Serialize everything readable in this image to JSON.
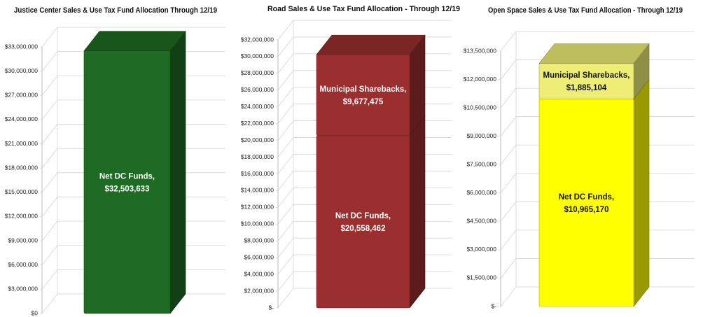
{
  "chart_data": [
    {
      "type": "bar",
      "title": "Justice Center Sales & Use Tax Fund Allocation Through 12/19",
      "series": [
        {
          "name": "Net DC Funds",
          "color": "#1e6b23",
          "values": [
            32503633
          ],
          "value_labels": [
            "Net DC Funds, $32,503,633"
          ]
        }
      ],
      "ylim": [
        0,
        33000000
      ],
      "yticks": [
        {
          "value": 0,
          "label": "$0"
        },
        {
          "value": 3000000,
          "label": "$3,000,000"
        },
        {
          "value": 6000000,
          "label": "$6,000,000"
        },
        {
          "value": 9000000,
          "label": "$9,000,000"
        },
        {
          "value": 12000000,
          "label": "$12,000,000"
        },
        {
          "value": 15000000,
          "label": "$15,000,000"
        },
        {
          "value": 18000000,
          "label": "$18,000,000"
        },
        {
          "value": 21000000,
          "label": "$21,000,000"
        },
        {
          "value": 24000000,
          "label": "$24,000,000"
        },
        {
          "value": 27000000,
          "label": "$27,000,000"
        },
        {
          "value": 30000000,
          "label": "$30,000,000"
        },
        {
          "value": 33000000,
          "label": "$33,000,000"
        }
      ],
      "grid": true
    },
    {
      "type": "bar",
      "title": "Road Sales & Use Tax Fund Allocation - Through 12/19",
      "series": [
        {
          "name": "Net DC Funds",
          "color": "#9b2e2e",
          "values": [
            20558462
          ],
          "value_labels": [
            "Net DC Funds, $20,558,462"
          ]
        },
        {
          "name": "Municipal Sharebacks",
          "color": "#9b2e2e",
          "values": [
            9677475
          ],
          "value_labels": [
            "Municipal Sharebacks, $9,677,475"
          ]
        }
      ],
      "ylim": [
        0,
        32000000
      ],
      "yticks": [
        {
          "value": 0,
          "label": "$-"
        },
        {
          "value": 2000000,
          "label": "$2,000,000"
        },
        {
          "value": 4000000,
          "label": "$4,000,000"
        },
        {
          "value": 6000000,
          "label": "$6,000,000"
        },
        {
          "value": 8000000,
          "label": "$8,000,000"
        },
        {
          "value": 10000000,
          "label": "$10,000,000"
        },
        {
          "value": 12000000,
          "label": "$12,000,000"
        },
        {
          "value": 14000000,
          "label": "$14,000,000"
        },
        {
          "value": 16000000,
          "label": "$16,000,000"
        },
        {
          "value": 18000000,
          "label": "$18,000,000"
        },
        {
          "value": 20000000,
          "label": "$20,000,000"
        },
        {
          "value": 22000000,
          "label": "$22,000,000"
        },
        {
          "value": 24000000,
          "label": "$24,000,000"
        },
        {
          "value": 26000000,
          "label": "$26,000,000"
        },
        {
          "value": 28000000,
          "label": "$28,000,000"
        },
        {
          "value": 30000000,
          "label": "$30,000,000"
        },
        {
          "value": 32000000,
          "label": "$32,000,000"
        }
      ],
      "grid": true
    },
    {
      "type": "bar",
      "title": "Open Space Sales & Use Tax Fund Allocation - Through 12/19",
      "series": [
        {
          "name": "Net DC Funds",
          "color": "#ffff00",
          "values": [
            10965170
          ],
          "value_labels": [
            "Net DC Funds, $10,965,170"
          ]
        },
        {
          "name": "Municipal Sharebacks",
          "color": "#eeee77",
          "values": [
            1885104
          ],
          "value_labels": [
            "Municipal Sharebacks, $1,885,104"
          ]
        }
      ],
      "ylim": [
        0,
        13500000
      ],
      "yticks": [
        {
          "value": 0,
          "label": "$-"
        },
        {
          "value": 1500000,
          "label": "$1,500,000"
        },
        {
          "value": 3000000,
          "label": "$3,000,000"
        },
        {
          "value": 4500000,
          "label": "$4,500,000"
        },
        {
          "value": 6000000,
          "label": "$6,000,000"
        },
        {
          "value": 7500000,
          "label": "$7,500,000"
        },
        {
          "value": 9000000,
          "label": "$9,000,000"
        },
        {
          "value": 10500000,
          "label": "$10,500,000"
        },
        {
          "value": 12000000,
          "label": "$12,000,000"
        },
        {
          "value": 13500000,
          "label": "$13,500,000"
        }
      ],
      "grid": true
    }
  ]
}
